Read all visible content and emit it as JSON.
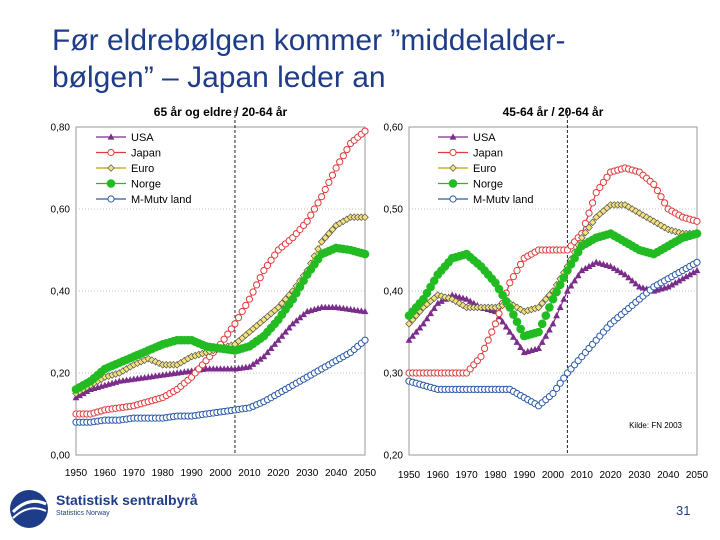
{
  "slide": {
    "title_line1": "Før eldrebølgen kommer ”middelalder-",
    "title_line2": "bølgen” – Japan leder an",
    "page_number": "31",
    "logo_name": "Statistisk sentralbyrå",
    "logo_sub": "Statistics Norway",
    "title_color": "#1f3c88"
  },
  "chart_data": [
    {
      "type": "line",
      "title": "65 år og eldre / 20-64 år",
      "xlabel": "",
      "ylabel": "",
      "xlim": [
        1950,
        2050
      ],
      "ylim": [
        0,
        0.8
      ],
      "x_ticks": [
        1950,
        1960,
        1970,
        1980,
        1990,
        2000,
        2010,
        2020,
        2030,
        2040,
        2050
      ],
      "y_ticks": [
        0,
        0.2,
        0.4,
        0.6,
        0.8
      ],
      "y_tick_labels": [
        "0,00",
        "0,20",
        "0,40",
        "0,60",
        "0,80"
      ],
      "vline": 2005,
      "x": [
        1950,
        1955,
        1960,
        1965,
        1970,
        1975,
        1980,
        1985,
        1990,
        1995,
        2000,
        2005,
        2010,
        2015,
        2020,
        2025,
        2030,
        2035,
        2040,
        2045,
        2050
      ],
      "series": [
        {
          "name": "USA",
          "color": "#7b2d8b",
          "marker": "triangle",
          "values": [
            0.14,
            0.16,
            0.17,
            0.18,
            0.185,
            0.19,
            0.195,
            0.2,
            0.205,
            0.21,
            0.21,
            0.21,
            0.215,
            0.24,
            0.28,
            0.32,
            0.35,
            0.36,
            0.36,
            0.355,
            0.35
          ]
        },
        {
          "name": "Japan",
          "color": "#e03c3c",
          "marker": "circle-open",
          "values": [
            0.1,
            0.1,
            0.11,
            0.115,
            0.12,
            0.13,
            0.14,
            0.16,
            0.19,
            0.23,
            0.27,
            0.32,
            0.38,
            0.45,
            0.5,
            0.53,
            0.57,
            0.63,
            0.7,
            0.76,
            0.79
          ]
        },
        {
          "name": "Euro",
          "color": "#b8a800",
          "marker": "diamond",
          "values": [
            0.15,
            0.17,
            0.19,
            0.2,
            0.22,
            0.235,
            0.22,
            0.22,
            0.24,
            0.25,
            0.26,
            0.27,
            0.3,
            0.33,
            0.36,
            0.4,
            0.45,
            0.52,
            0.56,
            0.58,
            0.58
          ]
        },
        {
          "name": "Norge",
          "color": "#22bb22",
          "marker": "circle-filled",
          "values": [
            0.16,
            0.18,
            0.21,
            0.225,
            0.24,
            0.255,
            0.27,
            0.28,
            0.28,
            0.265,
            0.26,
            0.255,
            0.265,
            0.29,
            0.33,
            0.38,
            0.44,
            0.49,
            0.505,
            0.5,
            0.49
          ]
        },
        {
          "name": "M-Mutv land",
          "color": "#2a5aa8",
          "marker": "circle-open",
          "values": [
            0.08,
            0.08,
            0.085,
            0.085,
            0.09,
            0.09,
            0.09,
            0.095,
            0.095,
            0.1,
            0.105,
            0.11,
            0.115,
            0.13,
            0.15,
            0.17,
            0.19,
            0.21,
            0.23,
            0.25,
            0.28
          ]
        }
      ]
    },
    {
      "type": "line",
      "title": "45-64 år / 20-64 år",
      "xlabel": "",
      "ylabel": "",
      "xlim": [
        1950,
        2050
      ],
      "ylim": [
        0.2,
        0.6
      ],
      "x_ticks": [
        1950,
        1960,
        1970,
        1980,
        1990,
        2000,
        2010,
        2020,
        2030,
        2040,
        2050
      ],
      "y_ticks": [
        0.2,
        0.3,
        0.4,
        0.5,
        0.6
      ],
      "y_tick_labels": [
        "0,20",
        "0,30",
        "0,40",
        "0,50",
        "0,60"
      ],
      "vline": 2005,
      "annotation": "Kilde: FN 2003",
      "x": [
        1950,
        1955,
        1960,
        1965,
        1970,
        1975,
        1980,
        1985,
        1990,
        1995,
        2000,
        2005,
        2010,
        2015,
        2020,
        2025,
        2030,
        2035,
        2040,
        2045,
        2050
      ],
      "series": [
        {
          "name": "USA",
          "color": "#7b2d8b",
          "marker": "triangle",
          "values": [
            0.34,
            0.36,
            0.385,
            0.395,
            0.39,
            0.38,
            0.375,
            0.35,
            0.325,
            0.33,
            0.36,
            0.4,
            0.425,
            0.435,
            0.43,
            0.42,
            0.405,
            0.4,
            0.405,
            0.415,
            0.425
          ]
        },
        {
          "name": "Japan",
          "color": "#e03c3c",
          "marker": "circle-open",
          "values": [
            0.3,
            0.3,
            0.3,
            0.3,
            0.3,
            0.32,
            0.36,
            0.41,
            0.44,
            0.45,
            0.45,
            0.45,
            0.47,
            0.52,
            0.545,
            0.55,
            0.545,
            0.53,
            0.5,
            0.49,
            0.485
          ]
        },
        {
          "name": "Euro",
          "color": "#b8a800",
          "marker": "diamond",
          "values": [
            0.36,
            0.38,
            0.395,
            0.39,
            0.38,
            0.38,
            0.38,
            0.385,
            0.375,
            0.38,
            0.4,
            0.43,
            0.465,
            0.49,
            0.505,
            0.505,
            0.495,
            0.485,
            0.475,
            0.47,
            0.47
          ]
        },
        {
          "name": "Norge",
          "color": "#22bb22",
          "marker": "circle-filled",
          "values": [
            0.37,
            0.39,
            0.42,
            0.44,
            0.445,
            0.43,
            0.41,
            0.38,
            0.345,
            0.35,
            0.39,
            0.425,
            0.455,
            0.465,
            0.47,
            0.46,
            0.45,
            0.445,
            0.455,
            0.465,
            0.47
          ]
        },
        {
          "name": "M-Mutv land",
          "color": "#2a5aa8",
          "marker": "circle-open",
          "values": [
            0.29,
            0.285,
            0.28,
            0.28,
            0.28,
            0.28,
            0.28,
            0.28,
            0.27,
            0.26,
            0.275,
            0.3,
            0.32,
            0.34,
            0.36,
            0.375,
            0.39,
            0.405,
            0.415,
            0.425,
            0.435
          ]
        }
      ]
    }
  ]
}
